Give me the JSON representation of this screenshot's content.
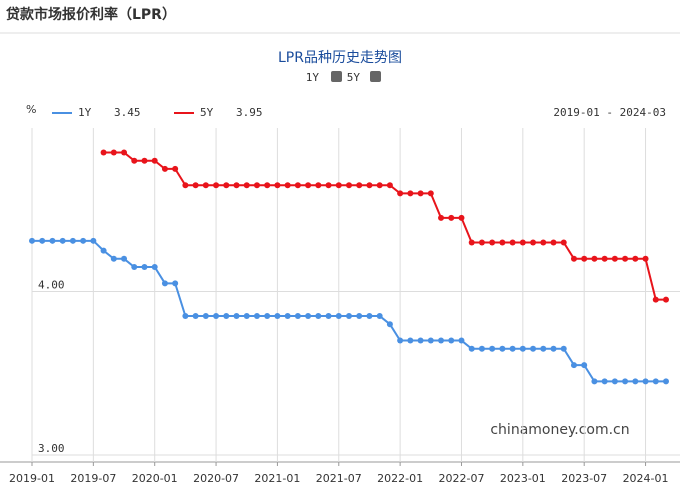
{
  "header": {
    "title": "贷款市场报价利率（LPR）"
  },
  "chart_data": {
    "type": "line",
    "title": "LPR品种历史走势图",
    "y_unit": "%",
    "date_range": "2019-01 - 2024-03",
    "watermark": "chinamoney.com.cn",
    "toggles": [
      "1Y",
      "5Y"
    ],
    "categories": [
      "2019-01",
      null,
      null,
      null,
      null,
      null,
      "2019-07",
      null,
      null,
      null,
      null,
      null,
      "2020-01",
      null,
      null,
      null,
      null,
      null,
      "2020-07",
      null,
      null,
      null,
      null,
      null,
      "2021-01",
      null,
      null,
      null,
      null,
      null,
      "2021-07",
      null,
      null,
      null,
      null,
      null,
      "2022-01",
      null,
      null,
      null,
      null,
      null,
      "2022-07",
      null,
      null,
      null,
      null,
      null,
      "2023-01",
      null,
      null,
      null,
      null,
      null,
      "2023-07",
      null,
      null,
      null,
      null,
      null,
      "2024-01",
      null,
      null
    ],
    "series": [
      {
        "name": "1Y",
        "latest": "3.45",
        "color": "#4a90e2",
        "values": [
          4.31,
          4.31,
          4.31,
          4.31,
          4.31,
          4.31,
          4.31,
          4.25,
          4.2,
          4.2,
          4.15,
          4.15,
          4.15,
          4.05,
          4.05,
          3.85,
          3.85,
          3.85,
          3.85,
          3.85,
          3.85,
          3.85,
          3.85,
          3.85,
          3.85,
          3.85,
          3.85,
          3.85,
          3.85,
          3.85,
          3.85,
          3.85,
          3.85,
          3.85,
          3.85,
          3.8,
          3.7,
          3.7,
          3.7,
          3.7,
          3.7,
          3.7,
          3.7,
          3.65,
          3.65,
          3.65,
          3.65,
          3.65,
          3.65,
          3.65,
          3.65,
          3.65,
          3.65,
          3.55,
          3.55,
          3.45,
          3.45,
          3.45,
          3.45,
          3.45,
          3.45,
          3.45,
          3.45
        ]
      },
      {
        "name": "5Y",
        "latest": "3.95",
        "color": "#e8141b",
        "values": [
          null,
          null,
          null,
          null,
          null,
          null,
          null,
          4.85,
          4.85,
          4.85,
          4.8,
          4.8,
          4.8,
          4.75,
          4.75,
          4.65,
          4.65,
          4.65,
          4.65,
          4.65,
          4.65,
          4.65,
          4.65,
          4.65,
          4.65,
          4.65,
          4.65,
          4.65,
          4.65,
          4.65,
          4.65,
          4.65,
          4.65,
          4.65,
          4.65,
          4.65,
          4.6,
          4.6,
          4.6,
          4.6,
          4.45,
          4.45,
          4.45,
          4.3,
          4.3,
          4.3,
          4.3,
          4.3,
          4.3,
          4.3,
          4.3,
          4.3,
          4.3,
          4.2,
          4.2,
          4.2,
          4.2,
          4.2,
          4.2,
          4.2,
          4.2,
          3.95,
          3.95
        ]
      }
    ],
    "ylim": [
      3,
      5
    ],
    "yticks": [
      {
        "value": 3,
        "label": "3.00"
      },
      {
        "value": 4,
        "label": "4.00"
      }
    ],
    "grid": true
  }
}
